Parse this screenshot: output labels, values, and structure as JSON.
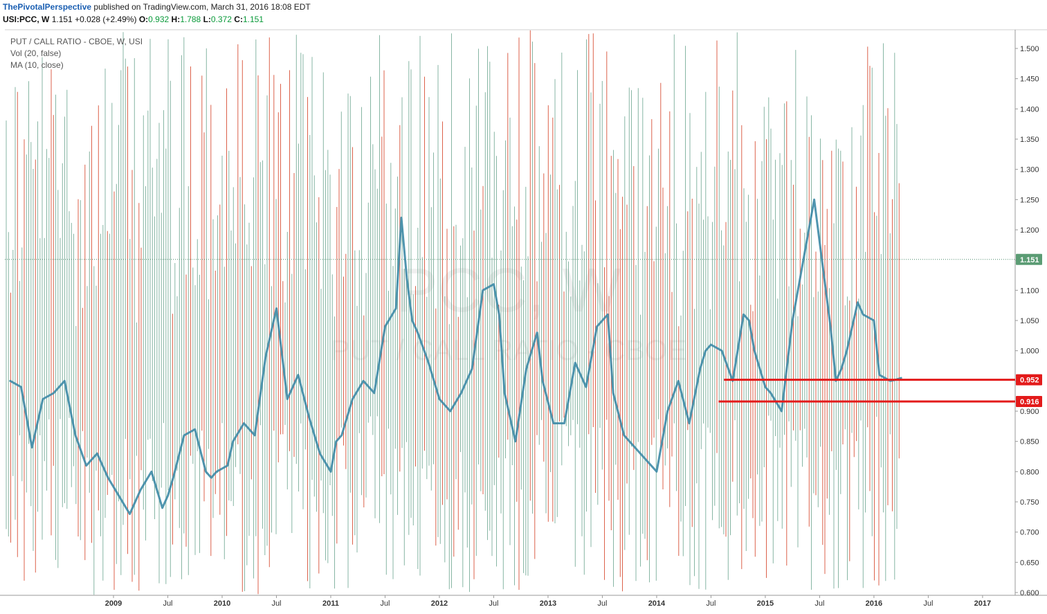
{
  "header": {
    "author": "ThePivotalPerspective",
    "published": "published on TradingView.com, March 31, 2016 18:08 EDT"
  },
  "quote": {
    "symbol": "USI:PCC, W",
    "last": "1.151",
    "change": "+0.028 (+2.49%)",
    "o_label": "O:",
    "o": "0.932",
    "h_label": "H:",
    "h": "1.788",
    "l_label": "L:",
    "l": "0.372",
    "c_label": "C:",
    "c": "1.151"
  },
  "legend": {
    "title": "PUT / CALL RATIO - CBOE, W, USI",
    "vol": "Vol (20, false)",
    "ma": "MA (10, close)"
  },
  "watermark": {
    "line1": "PCC, W",
    "line2": "PUT / CALL RATIO - CBOE"
  },
  "colors": {
    "up_bar": "#5f9e86",
    "down_bar": "#d6472b",
    "ma_line": "#3d8aa6",
    "level_line": "#e31a1a",
    "last_price_bg": "#5b9c74",
    "level_label_bg": "#e31a1a"
  },
  "chart_data": {
    "type": "line",
    "series": [
      {
        "name": "MA (10, close)",
        "x": [
          2008.05,
          2008.15,
          2008.25,
          2008.35,
          2008.45,
          2008.55,
          2008.65,
          2008.75,
          2008.85,
          2008.95,
          2009.05,
          2009.15,
          2009.25,
          2009.35,
          2009.45,
          2009.5,
          2009.55,
          2009.65,
          2009.75,
          2009.85,
          2009.9,
          2009.95,
          2010.05,
          2010.1,
          2010.2,
          2010.3,
          2010.4,
          2010.5,
          2010.6,
          2010.7,
          2010.8,
          2010.9,
          2011.0,
          2011.05,
          2011.1,
          2011.2,
          2011.3,
          2011.4,
          2011.5,
          2011.6,
          2011.65,
          2011.7,
          2011.75,
          2011.8,
          2011.9,
          2012.0,
          2012.1,
          2012.2,
          2012.3,
          2012.4,
          2012.5,
          2012.55,
          2012.6,
          2012.7,
          2012.8,
          2012.9,
          2012.95,
          2013.05,
          2013.15,
          2013.25,
          2013.35,
          2013.45,
          2013.55,
          2013.6,
          2013.7,
          2013.8,
          2013.9,
          2014.0,
          2014.05,
          2014.1,
          2014.2,
          2014.3,
          2014.4,
          2014.45,
          2014.5,
          2014.6,
          2014.7,
          2014.8,
          2014.85,
          2014.9,
          2015.0,
          2015.05,
          2015.15,
          2015.25,
          2015.35,
          2015.45,
          2015.5,
          2015.6,
          2015.65,
          2015.7,
          2015.75,
          2015.85,
          2015.9,
          2016.0,
          2016.05,
          2016.15,
          2016.2,
          2016.25
        ],
        "y": [
          0.95,
          0.94,
          0.84,
          0.92,
          0.93,
          0.95,
          0.86,
          0.81,
          0.83,
          0.79,
          0.76,
          0.73,
          0.77,
          0.8,
          0.74,
          0.76,
          0.79,
          0.86,
          0.87,
          0.8,
          0.79,
          0.8,
          0.81,
          0.85,
          0.88,
          0.86,
          0.99,
          1.07,
          0.92,
          0.96,
          0.89,
          0.83,
          0.8,
          0.85,
          0.86,
          0.92,
          0.95,
          0.93,
          1.04,
          1.07,
          1.22,
          1.12,
          1.05,
          1.03,
          0.98,
          0.92,
          0.9,
          0.93,
          0.97,
          1.1,
          1.11,
          1.06,
          0.93,
          0.85,
          0.97,
          1.03,
          0.95,
          0.88,
          0.88,
          0.98,
          0.94,
          1.04,
          1.06,
          0.93,
          0.86,
          0.84,
          0.82,
          0.8,
          0.85,
          0.9,
          0.95,
          0.88,
          0.97,
          1.0,
          1.01,
          1.0,
          0.95,
          1.06,
          1.05,
          1.0,
          0.94,
          0.93,
          0.9,
          1.05,
          1.15,
          1.25,
          1.18,
          1.04,
          0.95,
          0.97,
          1.0,
          1.08,
          1.06,
          1.05,
          0.96,
          0.95,
          0.952,
          0.955
        ]
      }
    ],
    "xlabel": "",
    "ylabel": "",
    "ylim": [
      0.6,
      1.5
    ],
    "y_ticks": [
      "1.500",
      "1.450",
      "1.400",
      "1.350",
      "1.300",
      "1.250",
      "1.200",
      "1.150",
      "1.100",
      "1.050",
      "1.000",
      "0.950",
      "0.900",
      "0.850",
      "0.800",
      "0.750",
      "0.700",
      "0.650",
      "0.600"
    ],
    "x_ticks": [
      {
        "label": "2009",
        "x": 2009.0,
        "bold": true
      },
      {
        "label": "Jul",
        "x": 2009.5,
        "bold": false
      },
      {
        "label": "2010",
        "x": 2010.0,
        "bold": true
      },
      {
        "label": "Jul",
        "x": 2010.5,
        "bold": false
      },
      {
        "label": "2011",
        "x": 2011.0,
        "bold": true
      },
      {
        "label": "Jul",
        "x": 2011.5,
        "bold": false
      },
      {
        "label": "2012",
        "x": 2012.0,
        "bold": true
      },
      {
        "label": "Jul",
        "x": 2012.5,
        "bold": false
      },
      {
        "label": "2013",
        "x": 2013.0,
        "bold": true
      },
      {
        "label": "Jul",
        "x": 2013.5,
        "bold": false
      },
      {
        "label": "2014",
        "x": 2014.0,
        "bold": true
      },
      {
        "label": "Jul",
        "x": 2014.5,
        "bold": false
      },
      {
        "label": "2015",
        "x": 2015.0,
        "bold": true
      },
      {
        "label": "Jul",
        "x": 2015.5,
        "bold": false
      },
      {
        "label": "2016",
        "x": 2016.0,
        "bold": true
      },
      {
        "label": "Jul",
        "x": 2016.5,
        "bold": false
      },
      {
        "label": "2017",
        "x": 2017.0,
        "bold": true
      }
    ],
    "last_price": {
      "value": 1.151,
      "label": "1.151"
    },
    "levels": [
      {
        "value": 0.952,
        "label": "0.952",
        "from_x": 2014.62
      },
      {
        "value": 0.916,
        "label": "0.916",
        "from_x": 2014.57
      }
    ],
    "grid": false,
    "legend_position": "top-left"
  }
}
